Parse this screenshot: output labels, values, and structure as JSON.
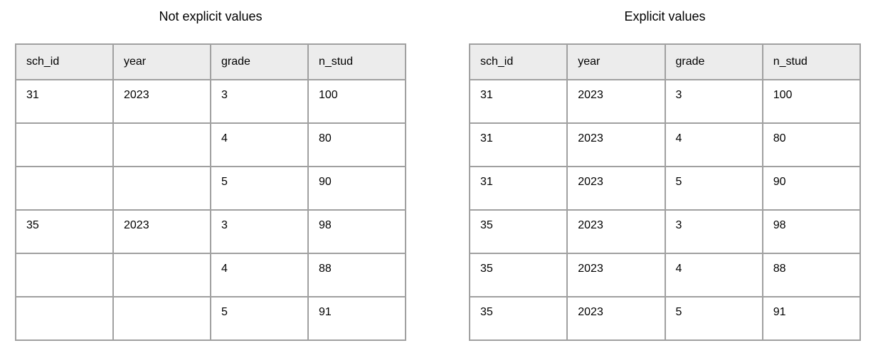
{
  "colors": {
    "border": "#a0a0a0",
    "header_bg": "#ececec",
    "text": "#000000",
    "background": "#ffffff"
  },
  "tables": [
    {
      "title": "Not explicit values",
      "headers": [
        "sch_id",
        "year",
        "grade",
        "n_stud"
      ],
      "rows": [
        [
          "31",
          "2023",
          "3",
          "100"
        ],
        [
          "",
          "",
          "4",
          "80"
        ],
        [
          "",
          "",
          "5",
          "90"
        ],
        [
          "35",
          "2023",
          "3",
          "98"
        ],
        [
          "",
          "",
          "4",
          "88"
        ],
        [
          "",
          "",
          "5",
          "91"
        ]
      ]
    },
    {
      "title": "Explicit values",
      "headers": [
        "sch_id",
        "year",
        "grade",
        "n_stud"
      ],
      "rows": [
        [
          "31",
          "2023",
          "3",
          "100"
        ],
        [
          "31",
          "2023",
          "4",
          "80"
        ],
        [
          "31",
          "2023",
          "5",
          "90"
        ],
        [
          "35",
          "2023",
          "3",
          "98"
        ],
        [
          "35",
          "2023",
          "4",
          "88"
        ],
        [
          "35",
          "2023",
          "5",
          "91"
        ]
      ]
    }
  ]
}
